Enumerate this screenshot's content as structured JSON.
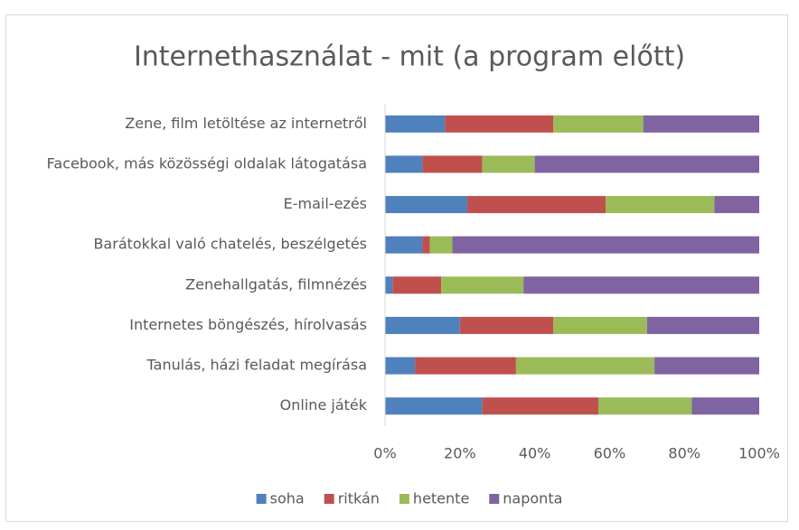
{
  "chart_data": {
    "type": "stacked-bar-horizontal",
    "title": "Internethasználat - mit (a program előtt)",
    "categories": [
      "Zene, film letöltése az internetről",
      "Facebook, más közösségi oldalak látogatása",
      "E-mail-ezés",
      "Barátokkal való chatelés, beszélgetés",
      "Zenehallgatás, filmnézés",
      "Internetes böngészés, hírolvasás",
      "Tanulás, házi feladat megírása",
      "Online játék"
    ],
    "series": [
      {
        "name": "soha",
        "color": "#4f81bd",
        "values": [
          16,
          10,
          22,
          10,
          2,
          20,
          8,
          26
        ]
      },
      {
        "name": "ritkán",
        "color": "#c0504d",
        "values": [
          29,
          16,
          37,
          2,
          13,
          25,
          27,
          31
        ]
      },
      {
        "name": "hetente",
        "color": "#9bbb59",
        "values": [
          24,
          14,
          29,
          6,
          22,
          25,
          37,
          25
        ]
      },
      {
        "name": "naponta",
        "color": "#8064a2",
        "values": [
          31,
          60,
          12,
          82,
          63,
          30,
          28,
          18
        ]
      }
    ],
    "xlim": [
      0,
      100
    ],
    "xticks": [
      {
        "value": 0,
        "label": "0%"
      },
      {
        "value": 20,
        "label": "20%"
      },
      {
        "value": 40,
        "label": "40%"
      },
      {
        "value": 60,
        "label": "60%"
      },
      {
        "value": 80,
        "label": "80%"
      },
      {
        "value": 100,
        "label": "100%"
      }
    ],
    "legend": "bottom"
  }
}
